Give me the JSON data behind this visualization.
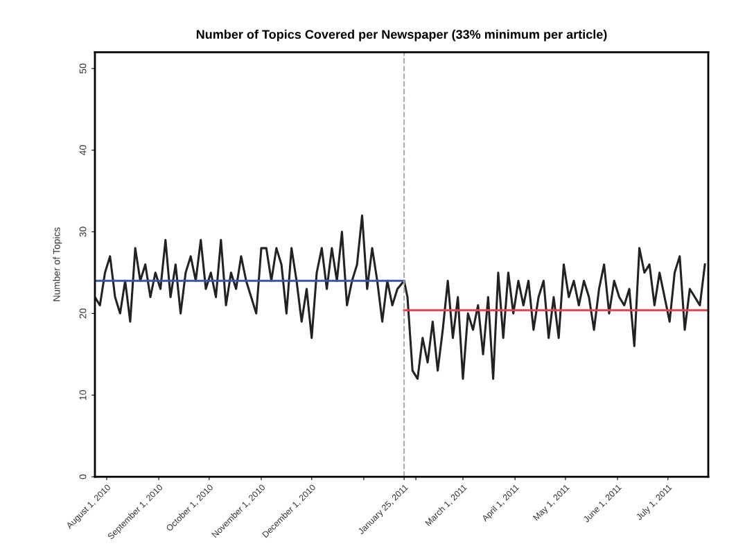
{
  "chart_data": {
    "type": "line",
    "title": "Number of Topics Covered per Newspaper (33% minimum per article)",
    "ylabel": "Number of Topics",
    "x": [
      "2010-07-25",
      "2010-07-28",
      "2010-07-31",
      "2010-08-03",
      "2010-08-06",
      "2010-08-09",
      "2010-08-12",
      "2010-08-15",
      "2010-08-18",
      "2010-08-21",
      "2010-08-24",
      "2010-08-27",
      "2010-08-30",
      "2010-09-02",
      "2010-09-05",
      "2010-09-08",
      "2010-09-11",
      "2010-09-14",
      "2010-09-17",
      "2010-09-20",
      "2010-09-23",
      "2010-09-26",
      "2010-09-29",
      "2010-10-02",
      "2010-10-05",
      "2010-10-08",
      "2010-10-11",
      "2010-10-14",
      "2010-10-17",
      "2010-10-20",
      "2010-10-23",
      "2010-10-26",
      "2010-10-29",
      "2010-11-01",
      "2010-11-04",
      "2010-11-07",
      "2010-11-10",
      "2010-11-13",
      "2010-11-16",
      "2010-11-19",
      "2010-11-22",
      "2010-11-25",
      "2010-11-28",
      "2010-12-01",
      "2010-12-04",
      "2010-12-07",
      "2010-12-10",
      "2010-12-13",
      "2010-12-16",
      "2010-12-19",
      "2010-12-22",
      "2010-12-25",
      "2010-12-28",
      "2010-12-31",
      "2011-01-03",
      "2011-01-06",
      "2011-01-09",
      "2011-01-12",
      "2011-01-15",
      "2011-01-18",
      "2011-01-21",
      "2011-01-25",
      "2011-01-27",
      "2011-01-30",
      "2011-02-02",
      "2011-02-05",
      "2011-02-08",
      "2011-02-11",
      "2011-02-14",
      "2011-02-17",
      "2011-02-20",
      "2011-02-23",
      "2011-02-26",
      "2011-03-01",
      "2011-03-04",
      "2011-03-07",
      "2011-03-10",
      "2011-03-13",
      "2011-03-16",
      "2011-03-19",
      "2011-03-22",
      "2011-03-25",
      "2011-03-28",
      "2011-03-31",
      "2011-04-03",
      "2011-04-06",
      "2011-04-09",
      "2011-04-12",
      "2011-04-15",
      "2011-04-18",
      "2011-04-21",
      "2011-04-24",
      "2011-04-27",
      "2011-04-30",
      "2011-05-03",
      "2011-05-06",
      "2011-05-09",
      "2011-05-12",
      "2011-05-15",
      "2011-05-18",
      "2011-05-21",
      "2011-05-24",
      "2011-05-27",
      "2011-05-30",
      "2011-06-02",
      "2011-06-05",
      "2011-06-08",
      "2011-06-11",
      "2011-06-14",
      "2011-06-17",
      "2011-06-20",
      "2011-06-23",
      "2011-06-26",
      "2011-06-29",
      "2011-07-02",
      "2011-07-05",
      "2011-07-08",
      "2011-07-11",
      "2011-07-14",
      "2011-07-17",
      "2011-07-20",
      "2011-07-23"
    ],
    "series": [
      {
        "color": "#222222",
        "values": [
          22,
          21,
          25,
          27,
          22,
          20,
          24,
          19,
          28,
          24,
          26,
          22,
          25,
          23,
          29,
          22,
          26,
          20,
          25,
          27,
          24,
          29,
          23,
          25,
          22,
          29,
          21,
          25,
          23,
          27,
          24,
          22,
          20,
          28,
          28,
          24,
          28,
          26,
          20,
          28,
          24,
          19,
          23,
          17,
          25,
          28,
          23,
          28,
          24,
          30,
          21,
          24,
          26,
          32,
          23,
          28,
          24,
          19,
          24,
          21,
          23,
          24,
          22,
          13,
          12,
          17,
          14,
          19,
          13,
          18,
          24,
          17,
          22,
          12,
          20,
          18,
          21,
          15,
          22,
          12,
          25,
          17,
          25,
          20,
          24,
          21,
          24,
          18,
          22,
          24,
          17,
          22,
          17,
          26,
          22,
          24,
          21,
          24,
          22,
          18,
          23,
          26,
          20,
          24,
          22,
          21,
          23,
          16,
          28,
          25,
          26,
          21,
          25,
          22,
          19,
          25,
          27,
          18,
          23,
          22,
          21,
          26
        ]
      },
      {
        "color": "#3b55a8",
        "x": [
          "2010-07-25",
          "2011-01-25"
        ],
        "values": [
          24,
          24
        ]
      },
      {
        "color": "#e0464c",
        "x": [
          "2011-01-25",
          "2011-07-25"
        ],
        "values": [
          20.4,
          20.4
        ]
      }
    ],
    "ref_lines": [
      {
        "axis": "x",
        "value": "2011-01-25",
        "color": "#aaaaaa",
        "line_style": "dashed"
      }
    ],
    "xlim": [
      "2010-07-25",
      "2011-07-25"
    ],
    "xticks": [
      {
        "value": "2010-08-01",
        "label": "August 1, 2010"
      },
      {
        "value": "2010-09-01",
        "label": "September 1, 2010"
      },
      {
        "value": "2010-10-01",
        "label": "October 1, 2010"
      },
      {
        "value": "2010-11-01",
        "label": "November 1, 2010"
      },
      {
        "value": "2010-12-01",
        "label": "December 1, 2010"
      },
      {
        "value": "2011-01-01",
        "label": null
      },
      {
        "value": "2011-01-25",
        "label": "January 25, 2011"
      },
      {
        "value": "2011-02-01",
        "label": null
      },
      {
        "value": "2011-03-01",
        "label": "March 1, 2011"
      },
      {
        "value": "2011-04-01",
        "label": "April 1, 2011"
      },
      {
        "value": "2011-05-01",
        "label": "May 1, 2011"
      },
      {
        "value": "2011-06-01",
        "label": "June 1, 2011"
      },
      {
        "value": "2011-07-01",
        "label": "July 1, 2011"
      }
    ],
    "ylim": [
      0,
      52
    ],
    "yticks": [
      0,
      10,
      20,
      30,
      40,
      50
    ],
    "grid": false,
    "legend": false,
    "marker": "none",
    "line_style": "solid"
  }
}
